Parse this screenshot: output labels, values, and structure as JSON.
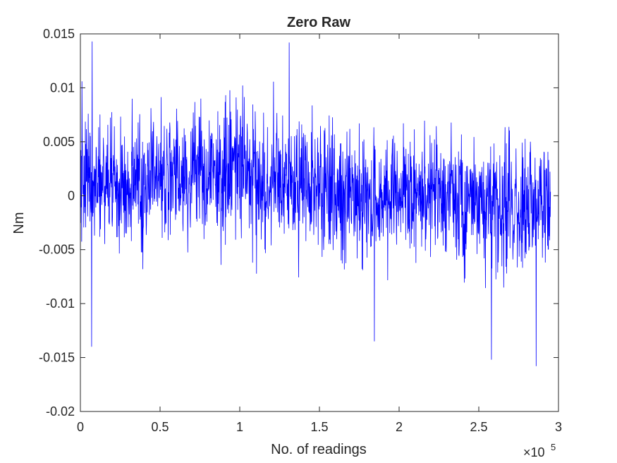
{
  "chart_data": {
    "type": "line",
    "title": "Zero Raw",
    "xlabel": "No. of readings",
    "ylabel": "Nm",
    "x_exponent_label": "×10",
    "x_exponent_power": "5",
    "xlim": [
      0,
      3
    ],
    "ylim": [
      -0.02,
      0.015
    ],
    "x_scale_factor": 100000,
    "x_ticks": [
      0,
      0.5,
      1,
      1.5,
      2,
      2.5,
      3
    ],
    "x_tick_labels": [
      "0",
      "0.5",
      "1",
      "1.5",
      "2",
      "2.5",
      "3"
    ],
    "y_ticks": [
      -0.02,
      -0.015,
      -0.01,
      -0.005,
      0,
      0.005,
      0.01,
      0.015
    ],
    "y_tick_labels": [
      "-0.02",
      "-0.015",
      "-0.01",
      "-0.005",
      "0",
      "0.005",
      "0.01",
      "0.015"
    ],
    "grid": false,
    "legend": "none",
    "series_color": "#0000ff",
    "series": [
      {
        "x_range": [
          0,
          2.95
        ],
        "points_approx": 1800,
        "y_min": -0.0158,
        "y_max": 0.0143,
        "annotated_extremes": [
          {
            "x": 0.073,
            "y": 0.0143
          },
          {
            "x": 1.31,
            "y": 0.0142
          },
          {
            "x": 0.07,
            "y": -0.014
          },
          {
            "x": 1.845,
            "y": -0.0135
          },
          {
            "x": 2.58,
            "y": -0.0152
          },
          {
            "x": 2.86,
            "y": -0.0158
          },
          {
            "x": 0.01,
            "y": 0.0106
          }
        ],
        "segment_means": [
          {
            "x": [
              0,
              0.2
            ],
            "mean": 0.0015
          },
          {
            "x": [
              0.2,
              0.4
            ],
            "mean": 0.0005
          },
          {
            "x": [
              0.4,
              0.7
            ],
            "mean": 0.002
          },
          {
            "x": [
              0.7,
              1.1
            ],
            "mean": 0.0025
          },
          {
            "x": [
              1.1,
              1.6
            ],
            "mean": 0.001
          },
          {
            "x": [
              1.6,
              2.0
            ],
            "mean": -0.0005
          },
          {
            "x": [
              2.0,
              2.4
            ],
            "mean": 0.0
          },
          {
            "x": [
              2.4,
              2.95
            ],
            "mean": -0.001
          }
        ]
      }
    ]
  }
}
